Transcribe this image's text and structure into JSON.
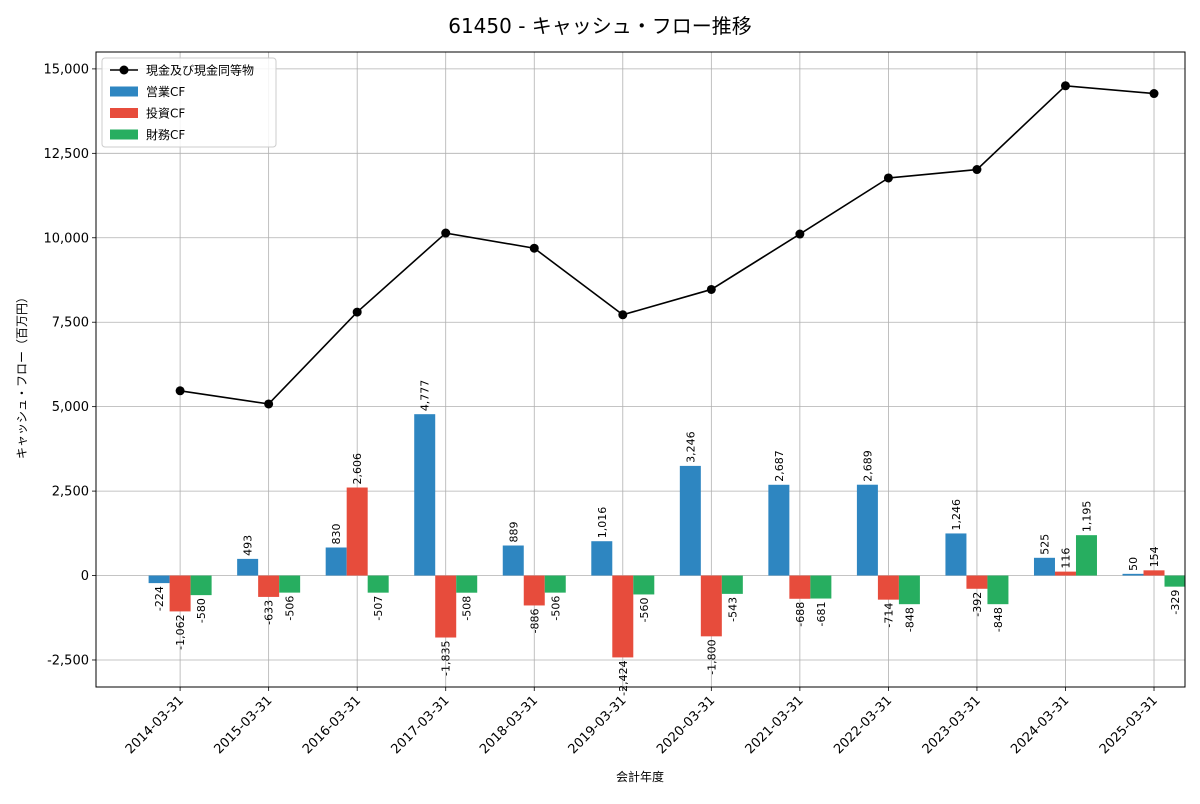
{
  "chart_data": {
    "type": "bar",
    "title": "61450 - キャッシュ・フロー推移",
    "xlabel": "会計年度",
    "ylabel": "キャッシュ・フロー（百万円）",
    "ylim": [
      -3300,
      15500
    ],
    "yticks": [
      -2500,
      0,
      2500,
      5000,
      7500,
      10000,
      12500,
      15000
    ],
    "ytick_labels": [
      "-2,500",
      "0",
      "2,500",
      "5,000",
      "7,500",
      "10,000",
      "12,500",
      "15,000"
    ],
    "grid": true,
    "legend_position": "top-left",
    "categories": [
      "2014-03-31",
      "2015-03-31",
      "2016-03-31",
      "2017-03-31",
      "2018-03-31",
      "2019-03-31",
      "2020-03-31",
      "2021-03-31",
      "2022-03-31",
      "2023-03-31",
      "2024-03-31",
      "2025-03-31"
    ],
    "series": [
      {
        "name": "営業CF",
        "kind": "bar",
        "color": "#2e86c1",
        "values": [
          -224,
          493,
          830,
          4777,
          889,
          1016,
          3246,
          2687,
          2689,
          1246,
          525,
          50
        ],
        "labels": [
          "-224",
          "493",
          "830",
          "4,777",
          "889",
          "1,016",
          "3,246",
          "2,687",
          "2,689",
          "1,246",
          "525",
          "50"
        ]
      },
      {
        "name": "投資CF",
        "kind": "bar",
        "color": "#e74c3c",
        "values": [
          -1062,
          -633,
          2606,
          -1835,
          -886,
          -2424,
          -1800,
          -688,
          -714,
          -392,
          116,
          154
        ],
        "labels": [
          "-1,062",
          "-633",
          "2,606",
          "-1,835",
          "-886",
          "-2,424",
          "-1,800",
          "-688",
          "-714",
          "-392",
          "116",
          "154"
        ]
      },
      {
        "name": "財務CF",
        "kind": "bar",
        "color": "#27ae60",
        "values": [
          -580,
          -506,
          -507,
          -508,
          -506,
          -560,
          -543,
          -681,
          -848,
          -848,
          1195,
          -329
        ],
        "labels": [
          "-580",
          "-506",
          "-507",
          "-508",
          "-506",
          "-560",
          "-543",
          "-681",
          "-848",
          "-848",
          "1,195",
          "-329"
        ]
      },
      {
        "name": "現金及び現金同等物",
        "kind": "line",
        "color": "#000000",
        "values": [
          5470,
          5080,
          7800,
          10140,
          9690,
          7720,
          8470,
          10110,
          11770,
          12020,
          14500,
          14270
        ]
      }
    ]
  }
}
